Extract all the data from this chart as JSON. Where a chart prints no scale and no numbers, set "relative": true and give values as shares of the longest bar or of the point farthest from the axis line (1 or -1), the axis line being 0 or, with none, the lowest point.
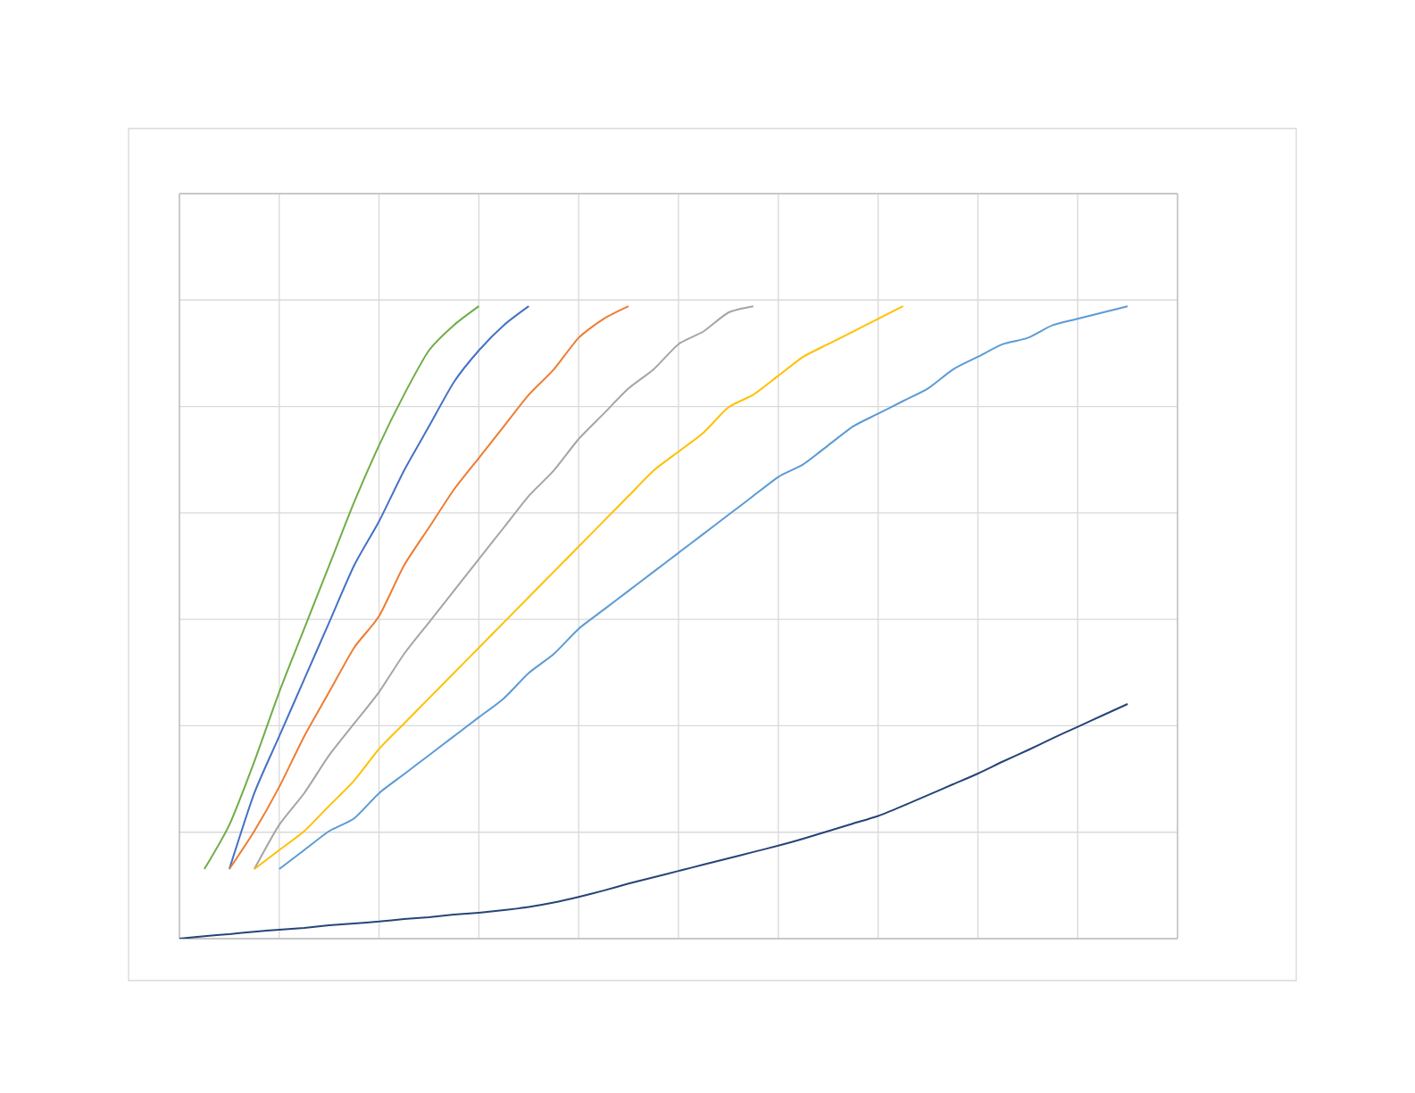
{
  "chart_data": {
    "type": "line",
    "relative": true,
    "grid": true,
    "categories": [
      null,
      null,
      null,
      null,
      null,
      null,
      null,
      null,
      null,
      null,
      null,
      null,
      null,
      null,
      null,
      null,
      null,
      null,
      null,
      null,
      null,
      null,
      null,
      null,
      null,
      null,
      null,
      null,
      null,
      null,
      null,
      null,
      null,
      null,
      null,
      null,
      null,
      null,
      null,
      null,
      null
    ],
    "series": [
      {
        "color": "#4472c4",
        "values": [
          null,
          null,
          0.11,
          0.23,
          0.32,
          0.41,
          0.5,
          0.59,
          0.66,
          0.74,
          0.81,
          0.88,
          0.93,
          0.97,
          1.0,
          null,
          null,
          null,
          null,
          null,
          null,
          null,
          null,
          null,
          null,
          null,
          null,
          null,
          null,
          null,
          null,
          null,
          null,
          null,
          null,
          null,
          null,
          null,
          null,
          null,
          null
        ]
      },
      {
        "color": "#ed7d31",
        "values": [
          null,
          null,
          0.11,
          0.17,
          0.24,
          0.32,
          0.39,
          0.46,
          0.51,
          0.59,
          0.65,
          0.71,
          0.76,
          0.81,
          0.86,
          0.9,
          0.95,
          0.98,
          1.0,
          null,
          null,
          null,
          null,
          null,
          null,
          null,
          null,
          null,
          null,
          null,
          null,
          null,
          null,
          null,
          null,
          null,
          null,
          null,
          null,
          null,
          null
        ]
      },
      {
        "color": "#a5a5a5",
        "values": [
          null,
          null,
          null,
          0.11,
          0.18,
          0.23,
          0.29,
          0.34,
          0.39,
          0.45,
          0.5,
          0.55,
          0.6,
          0.65,
          0.7,
          0.74,
          0.79,
          0.83,
          0.87,
          0.9,
          0.94,
          0.96,
          0.99,
          1.0,
          null,
          null,
          null,
          null,
          null,
          null,
          null,
          null,
          null,
          null,
          null,
          null,
          null,
          null,
          null,
          null,
          null
        ]
      },
      {
        "color": "#ffc000",
        "values": [
          null,
          null,
          null,
          0.11,
          0.14,
          0.17,
          0.21,
          0.25,
          0.3,
          0.34,
          0.38,
          0.42,
          0.46,
          0.5,
          0.54,
          0.58,
          0.62,
          0.66,
          0.7,
          0.74,
          0.77,
          0.8,
          0.84,
          0.86,
          0.89,
          0.92,
          0.94,
          0.96,
          0.98,
          1.0,
          null,
          null,
          null,
          null,
          null,
          null,
          null,
          null,
          null,
          null,
          null
        ]
      },
      {
        "color": "#5b9bd5",
        "values": [
          null,
          null,
          null,
          null,
          0.11,
          0.14,
          0.17,
          0.19,
          0.23,
          0.26,
          0.29,
          0.32,
          0.35,
          0.38,
          0.42,
          0.45,
          0.49,
          0.52,
          0.55,
          0.58,
          0.61,
          0.64,
          0.67,
          0.7,
          0.73,
          0.75,
          0.78,
          0.81,
          0.83,
          0.85,
          0.87,
          0.9,
          0.92,
          0.94,
          0.95,
          0.97,
          0.98,
          0.99,
          1.0,
          null,
          null
        ]
      },
      {
        "color": "#70ad47",
        "values": [
          null,
          0.11,
          0.18,
          0.28,
          0.39,
          0.49,
          0.59,
          0.69,
          0.78,
          0.86,
          0.93,
          0.97,
          1.0,
          null,
          null,
          null,
          null,
          null,
          null,
          null,
          null,
          null,
          null,
          null,
          null,
          null,
          null,
          null,
          null,
          null,
          null,
          null,
          null,
          null,
          null,
          null,
          null,
          null,
          null,
          null,
          null
        ]
      },
      {
        "color": "#264478",
        "values": [
          0,
          0.004,
          0.007,
          0.011,
          0.014,
          0.017,
          0.021,
          0.024,
          0.027,
          0.031,
          0.034,
          0.038,
          0.041,
          0.045,
          0.05,
          0.057,
          0.066,
          0.076,
          0.087,
          0.097,
          0.107,
          0.117,
          0.127,
          0.137,
          0.147,
          0.158,
          0.17,
          0.182,
          0.194,
          0.21,
          0.227,
          0.244,
          0.261,
          0.28,
          0.298,
          0.317,
          0.335,
          0.353,
          0.371,
          null,
          null
        ]
      }
    ]
  }
}
